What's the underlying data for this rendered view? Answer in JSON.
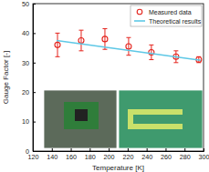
{
  "chart_data": {
    "type": "scatter",
    "x_label": "Temperature [K]",
    "y_label": "Gauge Factor [-]",
    "xlim": [
      120,
      300
    ],
    "xticks": [
      120,
      140,
      160,
      180,
      200,
      220,
      240,
      260,
      280,
      300
    ],
    "ylim": [
      0,
      50
    ],
    "yticks": [
      0,
      10,
      20,
      30,
      40,
      50
    ],
    "grid": false,
    "legend": "top-right",
    "series": [
      {
        "name": "Measured data",
        "type": "scatter",
        "color": "#e4231c",
        "marker": "circle",
        "x": [
          146,
          171,
          196,
          221,
          245,
          271,
          295
        ],
        "values": [
          36,
          37.5,
          38,
          35.5,
          33.5,
          32,
          31
        ],
        "errors": [
          4,
          3.5,
          3.5,
          3,
          2.5,
          2,
          1
        ]
      },
      {
        "name": "Theoretical results",
        "type": "line",
        "color": "#5ec8e6",
        "line_style": "solid",
        "x": [
          145,
          297
        ],
        "values": [
          37.5,
          30.8
        ]
      }
    ]
  }
}
